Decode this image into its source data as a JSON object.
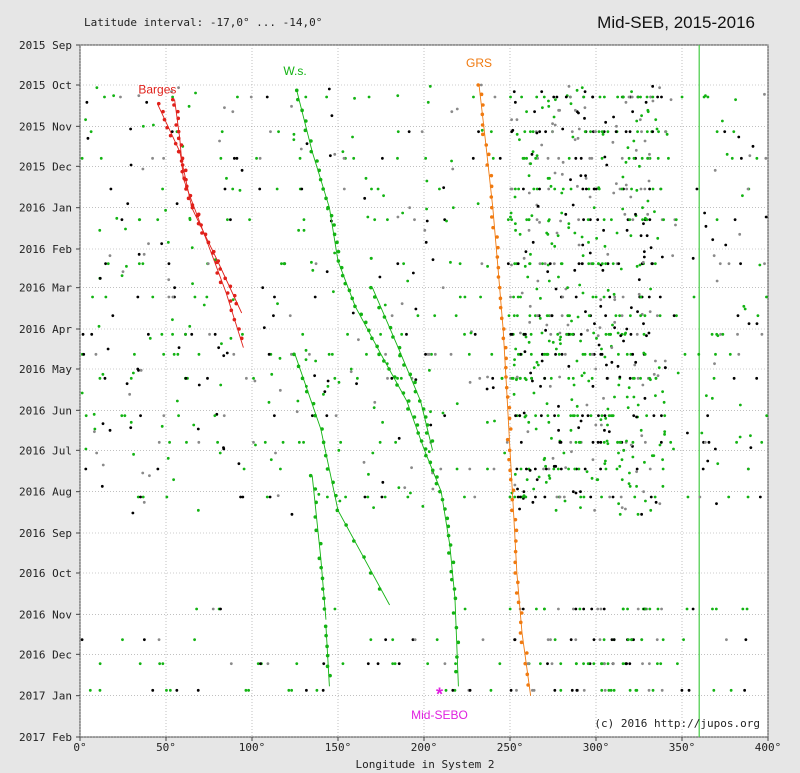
{
  "chart_data": {
    "type": "scatter",
    "title": "Mid-SEB, 2015-2016",
    "subtitle": "Latitude interval: -17,0° ... -14,0°",
    "xlabel": "Longitude in System 2",
    "ylabel": "",
    "credit": "(c) 2016 http://jupos.org",
    "xlim": [
      0,
      400
    ],
    "x_ticks": [
      0,
      50,
      100,
      150,
      200,
      250,
      300,
      350,
      400
    ],
    "x_tick_labels": [
      "0°",
      "50°",
      "100°",
      "150°",
      "200°",
      "250°",
      "300°",
      "350°",
      "400°"
    ],
    "y_ticks": [
      "2015-09-01",
      "2015-10-01",
      "2015-11-01",
      "2015-12-01",
      "2016-01-01",
      "2016-02-01",
      "2016-03-01",
      "2016-04-01",
      "2016-05-01",
      "2016-06-01",
      "2016-07-01",
      "2016-08-01",
      "2016-09-01",
      "2016-10-01",
      "2016-11-01",
      "2016-12-01",
      "2017-01-01",
      "2017-02-01"
    ],
    "y_tick_labels": [
      "2015 Sep",
      "2015 Oct",
      "2015 Nov",
      "2015 Dec",
      "2016 Jan",
      "2016 Feb",
      "2016 Mar",
      "2016 Apr",
      "2016 May",
      "2016 Jun",
      "2016 Jul",
      "2016 Aug",
      "2016 Sep",
      "2016 Oct",
      "2016 Nov",
      "2016 Dec",
      "2017 Jan",
      "2017 Feb"
    ],
    "grid": true,
    "reference_line": {
      "x": 360,
      "color": "#44cc44"
    },
    "colors": {
      "black": "#000000",
      "red": "#e0201a",
      "green": "#13b313",
      "orange": "#f07a10",
      "grey": "#8a8a8a",
      "magenta": "#e020e0"
    },
    "series": [
      {
        "name": "Barges",
        "color": "#e0201a",
        "tracks": [
          [
            [
              "2015-10-15",
              45
            ],
            [
              "2015-11-20",
              58
            ],
            [
              "2016-01-01",
              65
            ],
            [
              "2016-02-10",
              80
            ],
            [
              "2016-03-20",
              94
            ]
          ],
          [
            [
              "2015-10-12",
              55
            ],
            [
              "2015-11-10",
              58
            ],
            [
              "2015-12-10",
              60
            ],
            [
              "2016-01-20",
              72
            ],
            [
              "2016-03-05",
              85
            ],
            [
              "2016-04-15",
              95
            ]
          ]
        ]
      },
      {
        "name": "W.s.",
        "color": "#13b313",
        "tracks": [
          [
            [
              "2015-10-05",
              126
            ],
            [
              "2015-11-20",
              135
            ],
            [
              "2016-01-01",
              145
            ],
            [
              "2016-02-10",
              150
            ],
            [
              "2016-03-15",
              160
            ],
            [
              "2016-04-20",
              175
            ],
            [
              "2016-05-25",
              190
            ],
            [
              "2016-06-30",
              200
            ],
            [
              "2016-08-01",
              210
            ],
            [
              "2016-09-10",
              215
            ],
            [
              "2016-10-20",
              218
            ],
            [
              "2016-12-25",
              220
            ]
          ],
          [
            [
              "2016-03-01",
              170
            ],
            [
              "2016-04-15",
              185
            ],
            [
              "2016-05-25",
              198
            ],
            [
              "2016-07-01",
              205
            ]
          ],
          [
            [
              "2016-04-20",
              125
            ],
            [
              "2016-06-15",
              140
            ],
            [
              "2016-08-15",
              150
            ],
            [
              "2016-10-25",
              180
            ]
          ],
          [
            [
              "2016-07-20",
              135
            ],
            [
              "2016-09-20",
              140
            ],
            [
              "2016-11-05",
              143
            ]
          ],
          [
            [
              "2016-11-10",
              143
            ],
            [
              "2016-12-25",
              145
            ]
          ]
        ]
      },
      {
        "name": "GRS",
        "color": "#f07a10",
        "tracks": [
          [
            [
              "2015-10-01",
              232
            ],
            [
              "2015-11-15",
              236
            ],
            [
              "2016-01-01",
              240
            ],
            [
              "2016-02-15",
              243
            ],
            [
              "2016-04-01",
              246
            ],
            [
              "2016-05-15",
              248
            ],
            [
              "2016-07-01",
              250
            ],
            [
              "2016-08-15",
              252
            ],
            [
              "2016-10-01",
              254
            ],
            [
              "2016-11-15",
              257
            ],
            [
              "2017-01-01",
              262
            ]
          ]
        ]
      },
      {
        "name": "Mid-SEBO",
        "color": "#e020e0",
        "points": [
          [
            "2016-12-31",
            209
          ]
        ]
      }
    ],
    "annotations": [
      {
        "text": "Barges",
        "color": "#e0201a",
        "at": [
          "2015-10-15",
          45
        ]
      },
      {
        "text": "W.s.",
        "color": "#13b313",
        "at": [
          "2015-10-01",
          125
        ]
      },
      {
        "text": "GRS",
        "color": "#f07a10",
        "at": [
          "2015-09-25",
          232
        ]
      },
      {
        "text": "Mid-SEBO",
        "color": "#e020e0",
        "at": [
          "2017-01-08",
          209
        ]
      }
    ],
    "background_points": {
      "description_of_density": "dense black, green and grey drift measurements between longitudes 0 and 400"
    }
  }
}
